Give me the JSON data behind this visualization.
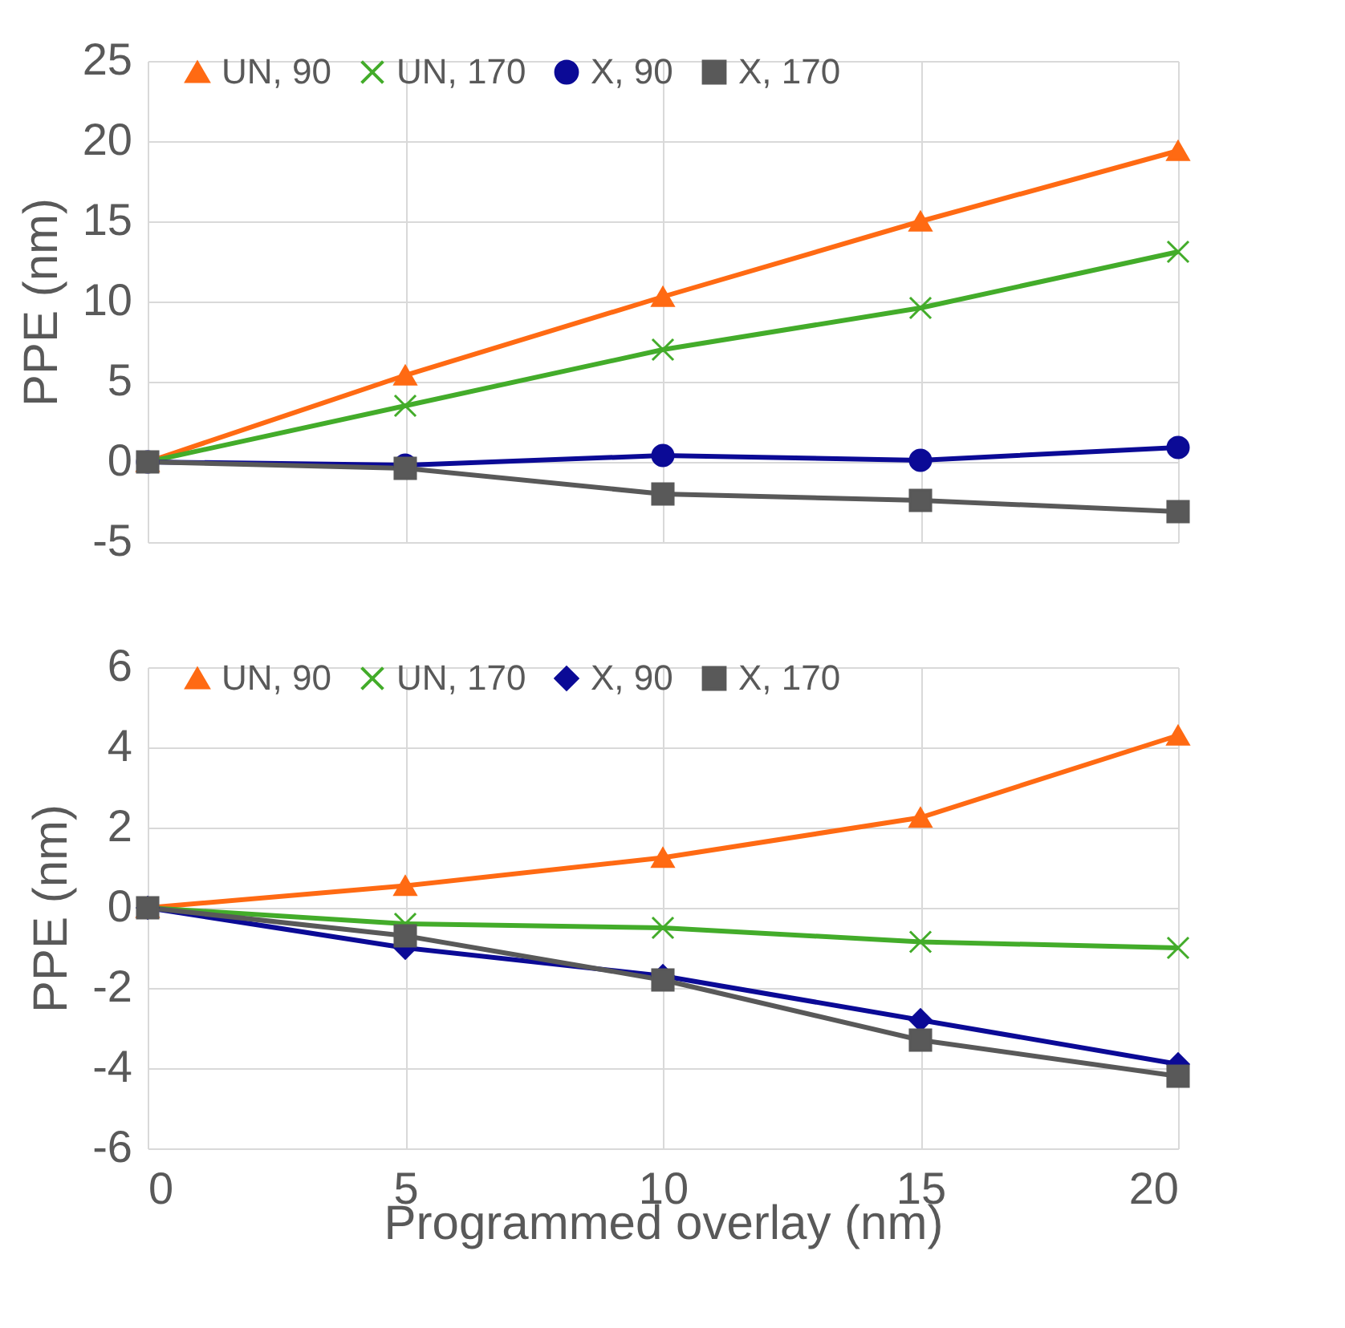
{
  "chart_data": [
    {
      "type": "line",
      "ylabel": "PPE (nm)",
      "x": [
        0,
        5,
        10,
        15,
        20
      ],
      "xlim": [
        0,
        20
      ],
      "xticks": [
        0,
        5,
        10,
        15,
        20
      ],
      "ylim": [
        -5,
        25
      ],
      "yticks": [
        -5,
        0,
        5,
        10,
        15,
        20,
        25
      ],
      "grid": true,
      "legend": "top",
      "tick_labels": "y",
      "series": [
        {
          "name": "UN, 90",
          "color": "#ff6a13",
          "marker": "triangle",
          "values": [
            0,
            5.4,
            10.3,
            15.0,
            19.4
          ]
        },
        {
          "name": "UN, 170",
          "color": "#43ac2a",
          "marker": "cross",
          "values": [
            0,
            3.5,
            7.0,
            9.6,
            13.1
          ]
        },
        {
          "name": "X, 90",
          "color": "#0b0a96",
          "marker": "circle",
          "values": [
            0,
            -0.2,
            0.4,
            0.1,
            0.9
          ]
        },
        {
          "name": "X, 170",
          "color": "#595959",
          "marker": "square",
          "values": [
            0,
            -0.4,
            -2.0,
            -2.4,
            -3.1
          ]
        }
      ]
    },
    {
      "type": "line",
      "ylabel": "PPE (nm)",
      "xlabel": "Programmed overlay (nm)",
      "x": [
        0,
        5,
        10,
        15,
        20
      ],
      "xlim": [
        0,
        20
      ],
      "xticks": [
        0,
        5,
        10,
        15,
        20
      ],
      "ylim": [
        -6,
        6
      ],
      "yticks": [
        -6,
        -4,
        -2,
        0,
        2,
        4,
        6
      ],
      "grid": true,
      "legend": "top",
      "series": [
        {
          "name": "UN, 90",
          "color": "#ff6a13",
          "marker": "triangle",
          "values": [
            0,
            0.55,
            1.25,
            2.25,
            4.3
          ]
        },
        {
          "name": "UN, 170",
          "color": "#43ac2a",
          "marker": "cross",
          "values": [
            0,
            -0.4,
            -0.5,
            -0.85,
            -1.0
          ]
        },
        {
          "name": "X, 90",
          "color": "#0b0a96",
          "marker": "diamond",
          "values": [
            0,
            -1.0,
            -1.7,
            -2.8,
            -3.9
          ]
        },
        {
          "name": "X, 170",
          "color": "#595959",
          "marker": "square",
          "values": [
            0,
            -0.7,
            -1.8,
            -3.3,
            -4.2
          ]
        }
      ]
    }
  ]
}
